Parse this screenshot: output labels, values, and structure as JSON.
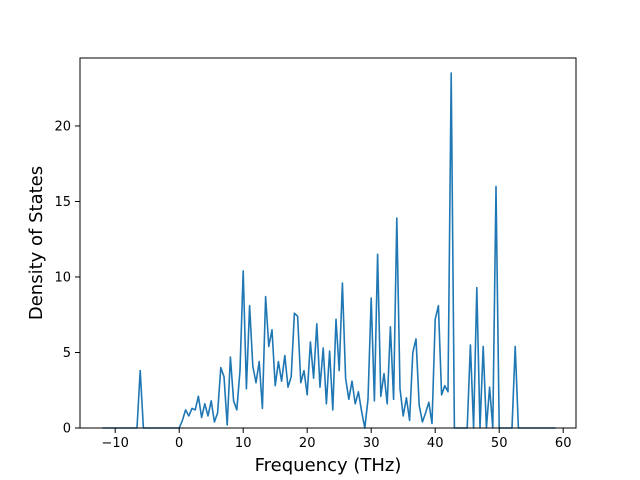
{
  "chart_data": {
    "type": "line",
    "title": "",
    "xlabel": "Frequency (THz)",
    "ylabel": "Density of States",
    "xlim": [
      -15.5,
      62.0
    ],
    "ylim": [
      0,
      24.5
    ],
    "xticks": [
      -10,
      0,
      10,
      20,
      30,
      40,
      50,
      60
    ],
    "yticks": [
      0,
      5,
      10,
      15,
      20
    ],
    "xtick_labels": [
      "−10",
      "0",
      "10",
      "20",
      "30",
      "40",
      "50",
      "60"
    ],
    "ytick_labels": [
      "0",
      "5",
      "10",
      "15",
      "20"
    ],
    "grid": false,
    "legend": "none",
    "series": [
      {
        "color": "#1f77b4",
        "x": [
          -12.0,
          -6.6,
          -6.1,
          -5.6,
          0.0,
          0.5,
          1.0,
          1.5,
          2.0,
          2.5,
          3.0,
          3.5,
          4.0,
          4.5,
          5.0,
          5.5,
          6.0,
          6.5,
          7.0,
          7.5,
          8.0,
          8.5,
          9.0,
          9.5,
          10.0,
          10.5,
          11.0,
          11.5,
          12.0,
          12.5,
          13.0,
          13.5,
          14.0,
          14.5,
          15.0,
          15.5,
          16.0,
          16.5,
          17.0,
          17.5,
          18.0,
          18.5,
          19.0,
          19.5,
          20.0,
          20.5,
          21.0,
          21.5,
          22.0,
          22.5,
          23.0,
          23.5,
          24.0,
          24.5,
          25.0,
          25.5,
          26.0,
          26.5,
          27.0,
          27.5,
          28.0,
          28.5,
          29.0,
          29.5,
          30.0,
          30.5,
          31.0,
          31.5,
          32.0,
          32.5,
          33.0,
          33.5,
          34.0,
          34.5,
          35.0,
          35.5,
          36.0,
          36.5,
          37.0,
          37.5,
          38.0,
          38.5,
          39.0,
          39.5,
          40.0,
          40.5,
          41.0,
          41.5,
          42.0,
          42.5,
          43.0,
          45.0,
          45.5,
          46.0,
          46.5,
          47.0,
          47.5,
          48.0,
          48.5,
          49.0,
          49.5,
          50.0,
          52.0,
          52.5,
          53.0,
          58.8
        ],
        "y": [
          0,
          0,
          3.8,
          0,
          0,
          0.5,
          1.2,
          0.8,
          1.3,
          1.2,
          2.1,
          0.7,
          1.6,
          0.8,
          1.8,
          0.4,
          1.0,
          4.0,
          3.4,
          0.2,
          4.7,
          1.8,
          1.2,
          3.8,
          10.4,
          2.6,
          8.1,
          4.1,
          3.0,
          4.4,
          1.3,
          8.7,
          5.4,
          6.5,
          2.8,
          4.4,
          3.1,
          4.8,
          2.7,
          3.4,
          7.6,
          7.4,
          3.0,
          3.8,
          2.2,
          5.7,
          3.3,
          6.9,
          2.7,
          5.3,
          1.6,
          5.1,
          1.2,
          7.2,
          3.8,
          9.6,
          3.3,
          1.9,
          3.1,
          1.6,
          2.4,
          1.1,
          0.0,
          1.9,
          8.6,
          1.8,
          11.5,
          2.1,
          3.6,
          1.6,
          6.7,
          1.9,
          13.9,
          2.6,
          0.8,
          2.0,
          0.5,
          5.0,
          5.9,
          1.5,
          0.4,
          1.0,
          1.7,
          0.3,
          7.2,
          8.1,
          2.2,
          2.8,
          2.4,
          23.5,
          0.0,
          0.0,
          5.5,
          0.0,
          9.3,
          0.0,
          5.4,
          0.0,
          2.7,
          0.0,
          16.0,
          0.0,
          0.0,
          5.4,
          0.0,
          0.0
        ]
      }
    ]
  }
}
